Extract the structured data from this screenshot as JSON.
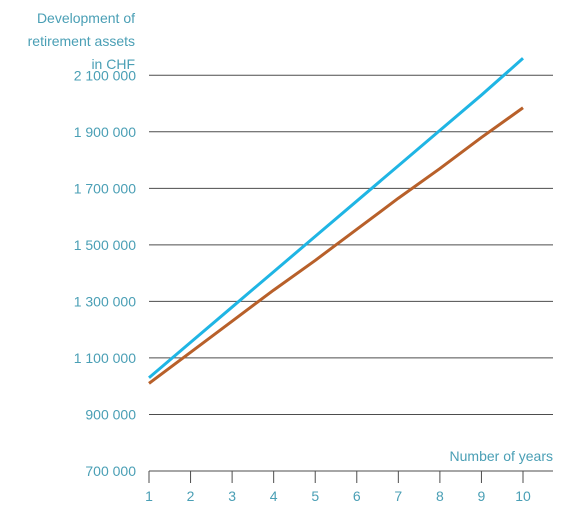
{
  "chart_data": {
    "type": "line",
    "ylabel_lines": [
      "Development of",
      "retirement assets",
      "in CHF"
    ],
    "xlabel": "Number of years",
    "x": [
      1,
      2,
      3,
      4,
      5,
      6,
      7,
      8,
      9,
      10
    ],
    "x_ticks": [
      "1",
      "2",
      "3",
      "4",
      "5",
      "6",
      "7",
      "8",
      "9",
      "10"
    ],
    "xlim": [
      1,
      10
    ],
    "ylim": [
      700000,
      2200000
    ],
    "y_ticks": [
      {
        "value": 700000,
        "label": "700 000"
      },
      {
        "value": 900000,
        "label": "900 000"
      },
      {
        "value": 1100000,
        "label": "1 100 000"
      },
      {
        "value": 1300000,
        "label": "1 300 000"
      },
      {
        "value": 1500000,
        "label": "1 500 000"
      },
      {
        "value": 1700000,
        "label": "1 700 000"
      },
      {
        "value": 1900000,
        "label": "1 900 000"
      },
      {
        "value": 2100000,
        "label": "2 100 000"
      }
    ],
    "grid": true,
    "series": [
      {
        "color": "#1fb5e4",
        "values": [
          1030000,
          1155000,
          1280000,
          1405000,
          1530000,
          1655000,
          1780000,
          1905000,
          2030000,
          2160000
        ]
      },
      {
        "color": "#b8602a",
        "values": [
          1010000,
          1120000,
          1230000,
          1340000,
          1445000,
          1555000,
          1665000,
          1770000,
          1880000,
          1985000
        ]
      }
    ]
  }
}
